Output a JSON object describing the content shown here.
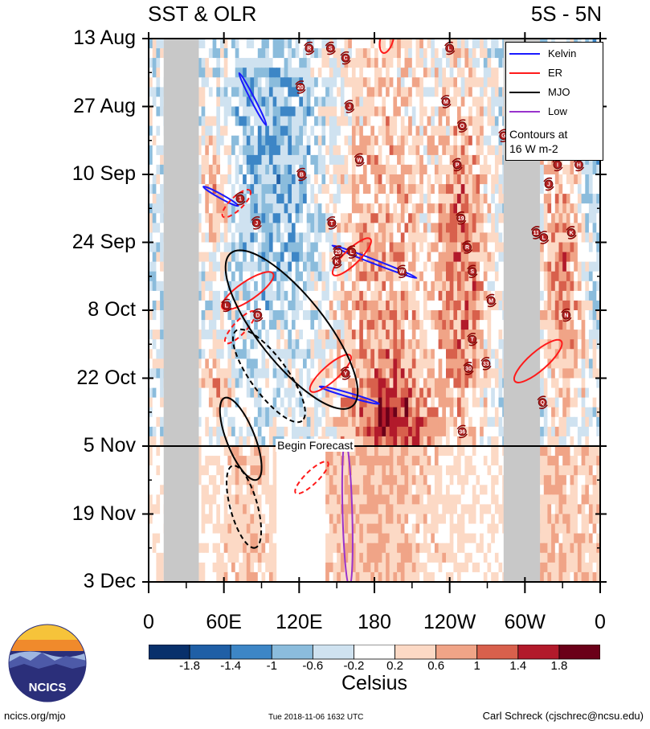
{
  "header": {
    "left_title": "SST & OLR",
    "right_title": "5S - 5N"
  },
  "legend": {
    "items": [
      {
        "label": "Kelvin",
        "color": "#1a1aff"
      },
      {
        "label": "ER",
        "color": "#ff1a1a"
      },
      {
        "label": "MJO",
        "color": "#000000"
      },
      {
        "label": "Low",
        "color": "#9933cc"
      }
    ],
    "note_line1": "Contours at",
    "note_line2": "16 W m-2"
  },
  "forecast_label": "Begin Forecast",
  "colorbar": {
    "unit": "Celsius",
    "ticks": [
      "-1.8",
      "-1.4",
      "-1",
      "-0.6",
      "-0.2",
      "0.2",
      "0.6",
      "1",
      "1.4",
      "1.8"
    ],
    "colors": [
      "#08306b",
      "#1f5fa6",
      "#3d86c6",
      "#8bbcdc",
      "#cfe2f0",
      "#ffffff",
      "#fcd9c5",
      "#f0a487",
      "#d8604c",
      "#b21a2b",
      "#6b0019"
    ]
  },
  "footer": {
    "site": "ncics.org/mjo",
    "timestamp": "Tue 2018-11-06 1632 UTC",
    "author": "Carl Schreck (cjschrec@ncsu.edu)",
    "logo_text": "NCICS"
  },
  "chart_data": {
    "type": "heatmap",
    "title": "SST & OLR",
    "subtitle": "5S - 5N",
    "xlabel": "",
    "ylabel": "",
    "x_tick_labels": [
      "0",
      "60E",
      "120E",
      "180",
      "120W",
      "60W",
      "0"
    ],
    "x_ticks_deg": [
      0,
      60,
      120,
      180,
      240,
      300,
      360
    ],
    "xlim": [
      0,
      360
    ],
    "y_tick_labels": [
      "13 Aug",
      "27 Aug",
      "10 Sep",
      "24 Sep",
      "8 Oct",
      "22 Oct",
      "5 Nov",
      "19 Nov",
      "3 Dec"
    ],
    "y_ticks_day": [
      0,
      14,
      28,
      42,
      56,
      70,
      84,
      98,
      112
    ],
    "ylim_days": [
      0,
      112
    ],
    "forecast_start_day": 84,
    "land_masks_deg": [
      [
        12,
        40
      ],
      [
        283,
        312
      ]
    ],
    "grid": false,
    "legend_position": "top-right",
    "storm_labels": [
      {
        "label": "R",
        "lon": 128,
        "day": 2
      },
      {
        "label": "S",
        "lon": 145,
        "day": 2
      },
      {
        "label": "L",
        "lon": 240,
        "day": 2
      },
      {
        "label": "C",
        "lon": 157,
        "day": 4
      },
      {
        "label": "20",
        "lon": 121,
        "day": 10
      },
      {
        "label": "M",
        "lon": 237,
        "day": 13
      },
      {
        "label": "J",
        "lon": 160,
        "day": 14
      },
      {
        "label": "O",
        "lon": 250,
        "day": 18
      },
      {
        "label": "G",
        "lon": 283,
        "day": 20
      },
      {
        "label": "W",
        "lon": 168,
        "day": 25
      },
      {
        "label": "P",
        "lon": 246,
        "day": 26
      },
      {
        "label": "I",
        "lon": 326,
        "day": 26
      },
      {
        "label": "H",
        "lon": 343,
        "day": 26
      },
      {
        "label": "B",
        "lon": 122,
        "day": 28
      },
      {
        "label": "J",
        "lon": 319,
        "day": 30
      },
      {
        "label": "1",
        "lon": 73,
        "day": 33
      },
      {
        "label": "19",
        "lon": 249,
        "day": 37
      },
      {
        "label": "J",
        "lon": 86,
        "day": 38
      },
      {
        "label": "T",
        "lon": 146,
        "day": 38
      },
      {
        "label": "11",
        "lon": 309,
        "day": 40
      },
      {
        "label": "K",
        "lon": 337,
        "day": 40
      },
      {
        "label": "L",
        "lon": 315,
        "day": 41
      },
      {
        "label": "R",
        "lon": 254,
        "day": 43
      },
      {
        "label": "29",
        "lon": 151,
        "day": 44
      },
      {
        "label": "K",
        "lon": 150,
        "day": 46
      },
      {
        "label": "L",
        "lon": 162,
        "day": 44
      },
      {
        "label": "S",
        "lon": 258,
        "day": 48
      },
      {
        "label": "W",
        "lon": 202,
        "day": 48
      },
      {
        "label": "L",
        "lon": 62,
        "day": 55
      },
      {
        "label": "M",
        "lon": 273,
        "day": 54
      },
      {
        "label": "D",
        "lon": 87,
        "day": 57
      },
      {
        "label": "N",
        "lon": 333,
        "day": 57
      },
      {
        "label": "T",
        "lon": 258,
        "day": 62
      },
      {
        "label": "30",
        "lon": 255,
        "day": 68
      },
      {
        "label": "33",
        "lon": 269,
        "day": 67
      },
      {
        "label": "Y",
        "lon": 157,
        "day": 69
      },
      {
        "label": "Q",
        "lon": 314,
        "day": 75
      },
      {
        "label": "36",
        "lon": 250,
        "day": 81
      }
    ],
    "wave_contours": [
      {
        "wave": "Kelvin",
        "sign": "solid",
        "lon": [
          74,
          86,
          92
        ],
        "day": [
          8,
          12,
          17
        ]
      },
      {
        "wave": "Kelvin",
        "sign": "solid",
        "lon": [
          47,
          68
        ],
        "day": [
          31,
          34
        ]
      },
      {
        "wave": "Kelvin",
        "sign": "solid",
        "lon": [
          150,
          176,
          210
        ],
        "day": [
          43,
          46,
          49
        ]
      },
      {
        "wave": "Kelvin",
        "sign": "solid",
        "lon": [
          140,
          158,
          180
        ],
        "day": [
          72,
          74,
          75
        ]
      },
      {
        "wave": "ER",
        "sign": "solid",
        "lon": [
          62,
          82,
          96
        ],
        "day": [
          55,
          54,
          49
        ]
      },
      {
        "wave": "ER",
        "sign": "solid",
        "lon": [
          150,
          174
        ],
        "day": [
          48,
          42
        ]
      },
      {
        "wave": "ER",
        "sign": "solid",
        "lon": [
          132,
          158
        ],
        "day": [
          72,
          66
        ]
      },
      {
        "wave": "ER",
        "sign": "solid",
        "lon": [
          295,
          326
        ],
        "day": [
          70,
          63
        ]
      },
      {
        "wave": "ER",
        "sign": "solid",
        "lon": [
          188,
          192
        ],
        "day": [
          2,
          -2
        ]
      },
      {
        "wave": "ER",
        "sign": "dashed",
        "lon": [
          120,
          140
        ],
        "day": [
          93,
          88
        ]
      },
      {
        "wave": "ER",
        "sign": "dashed",
        "lon": [
          64,
          82
        ],
        "day": [
          62,
          57
        ]
      },
      {
        "wave": "ER",
        "sign": "dashed",
        "lon": [
          62,
          78
        ],
        "day": [
          36,
          32
        ]
      },
      {
        "wave": "MJO",
        "sign": "solid",
        "lon": [
          68,
          110,
          160
        ],
        "day": [
          45,
          60,
          75
        ]
      },
      {
        "wave": "MJO",
        "sign": "solid",
        "lon": [
          62,
          85
        ],
        "day": [
          75,
          90
        ]
      },
      {
        "wave": "MJO",
        "sign": "dashed",
        "lon": [
          68,
          84
        ],
        "day": [
          89,
          104
        ]
      },
      {
        "wave": "MJO",
        "sign": "dashed",
        "lon": [
          72,
          120
        ],
        "day": [
          61,
          78
        ]
      },
      {
        "wave": "Low",
        "sign": "solid",
        "lon": [
          157,
          160
        ],
        "day": [
          84,
          112
        ]
      }
    ]
  }
}
